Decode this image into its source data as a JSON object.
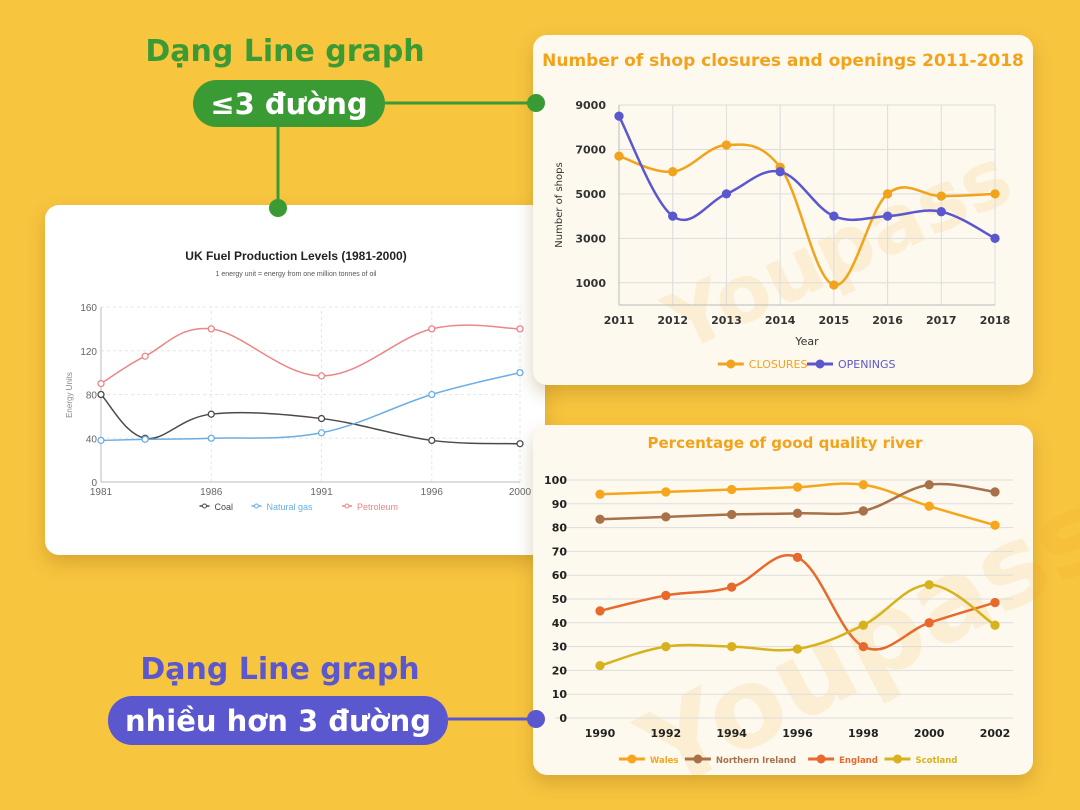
{
  "labels": {
    "top": {
      "heading": "Dạng Line graph",
      "pill": "≤3 đường",
      "color": "#3a9a34"
    },
    "bottom": {
      "heading": "Dạng Line graph",
      "pill": "nhiều hơn 3 đường",
      "color": "#5a57cf"
    }
  },
  "watermark": "Youpass",
  "chart_data": [
    {
      "type": "line",
      "title": "UK Fuel Production Levels (1981-2000)",
      "subtitle": "1 energy unit = energy from one million tonnes of oil",
      "xlabel": "",
      "ylabel": "Energy Units",
      "x": [
        1981,
        1983,
        1986,
        1991,
        1996,
        2000
      ],
      "xticks": [
        1981,
        1986,
        1991,
        1996,
        2000
      ],
      "ylim": [
        0,
        160
      ],
      "yticks": [
        0,
        40,
        80,
        120,
        160
      ],
      "grid": true,
      "legend": "bottom",
      "series": [
        {
          "name": "Coal",
          "color": "#4a4a4a",
          "values": [
            80,
            40,
            62,
            58,
            38,
            35
          ]
        },
        {
          "name": "Natural gas",
          "color": "#6aaee8",
          "values": [
            38,
            39,
            40,
            45,
            80,
            100
          ]
        },
        {
          "name": "Petroleum",
          "color": "#ec8585",
          "values": [
            90,
            115,
            140,
            97,
            140,
            140
          ]
        }
      ]
    },
    {
      "type": "line",
      "title": "Number of shop closures and openings 2011-2018",
      "xlabel": "Year",
      "ylabel": "Number of shops",
      "x": [
        2011,
        2012,
        2013,
        2014,
        2015,
        2016,
        2017,
        2018
      ],
      "xticks": [
        2011,
        2012,
        2013,
        2014,
        2015,
        2016,
        2017,
        2018
      ],
      "ylim": [
        0,
        9000
      ],
      "yticks": [
        1000,
        3000,
        5000,
        7000,
        9000
      ],
      "grid": true,
      "legend": "bottom",
      "series": [
        {
          "name": "CLOSURES",
          "color": "#f2a31b",
          "values": [
            6700,
            6000,
            7200,
            6200,
            900,
            5000,
            4900,
            5000
          ]
        },
        {
          "name": "OPENINGS",
          "color": "#5a57cf",
          "values": [
            8500,
            4000,
            5000,
            6000,
            4000,
            4000,
            4200,
            3000
          ]
        }
      ]
    },
    {
      "type": "line",
      "title": "Percentage of good quality river",
      "xlabel": "",
      "ylabel": "",
      "x": [
        1990,
        1992,
        1994,
        1996,
        1998,
        2000,
        2002
      ],
      "xticks": [
        1990,
        1992,
        1994,
        1996,
        1998,
        2000,
        2002
      ],
      "ylim": [
        0,
        100
      ],
      "yticks": [
        0,
        10,
        20,
        30,
        40,
        50,
        60,
        70,
        80,
        90,
        100
      ],
      "grid": true,
      "legend": "bottom",
      "series": [
        {
          "name": "Wales",
          "color": "#f7a51c",
          "values": [
            94,
            95,
            96,
            97,
            98,
            89,
            81
          ]
        },
        {
          "name": "Northern Ireland",
          "color": "#a8714a",
          "values": [
            83.5,
            84.5,
            85.5,
            86,
            87,
            98,
            95
          ]
        },
        {
          "name": "England",
          "color": "#e8692c",
          "values": [
            45,
            51.5,
            55,
            67.5,
            30,
            40,
            48.5
          ]
        },
        {
          "name": "Scotland",
          "color": "#d8b21c",
          "values": [
            22,
            30,
            30,
            29,
            39,
            56,
            39
          ]
        }
      ]
    }
  ]
}
